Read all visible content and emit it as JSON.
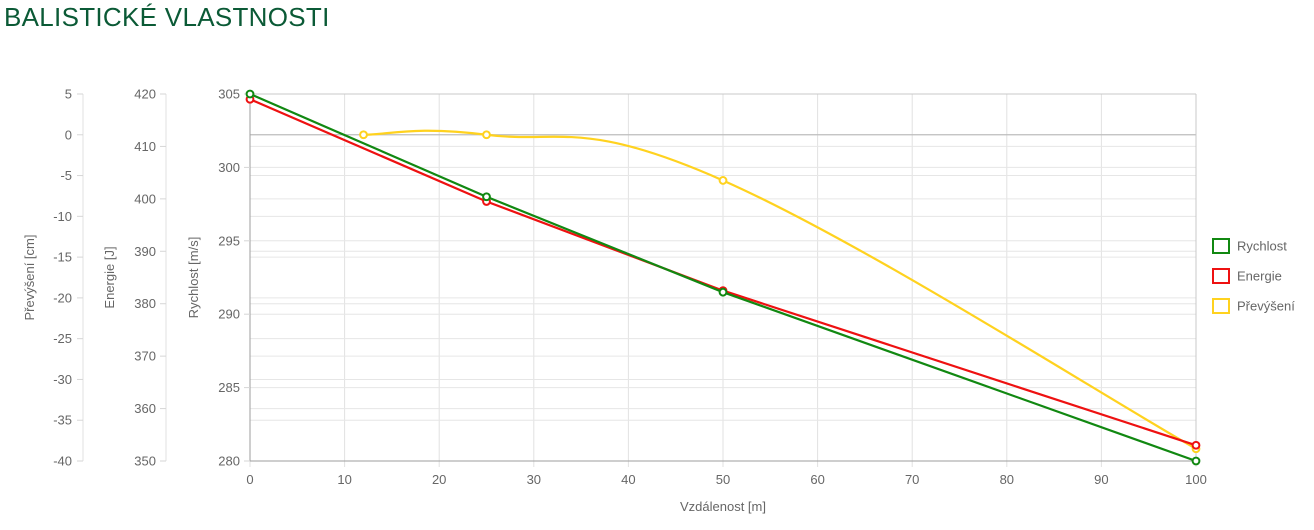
{
  "page": {
    "title": "BALISTICKÉ VLASTNOSTI"
  },
  "chart_data": {
    "type": "line",
    "xlabel": "Vzdálenost [m]",
    "xlim": [
      0,
      100
    ],
    "xticks": [
      0,
      10,
      20,
      30,
      40,
      50,
      60,
      70,
      80,
      90,
      100
    ],
    "grid": true,
    "legend_position": "right",
    "axes": [
      {
        "id": "prevyseni",
        "label": "Převýšení [cm]",
        "lim": [
          -40,
          5
        ],
        "ticks": [
          5,
          0,
          -5,
          -10,
          -15,
          -20,
          -25,
          -30,
          -35,
          -40
        ]
      },
      {
        "id": "energie",
        "label": "Energie [J]",
        "lim": [
          350,
          420
        ],
        "ticks": [
          420,
          410,
          400,
          390,
          380,
          370,
          360,
          350
        ]
      },
      {
        "id": "rychlost",
        "label": "Rychlost [m/s]",
        "lim": [
          280,
          305
        ],
        "ticks": [
          305,
          300,
          295,
          290,
          285,
          280
        ]
      }
    ],
    "series": [
      {
        "name": "Rychlost",
        "axis": "rychlost",
        "color": "#118811",
        "smooth": false,
        "x": [
          0,
          25,
          50,
          100
        ],
        "y": [
          305,
          298,
          291.5,
          280
        ]
      },
      {
        "name": "Energie",
        "axis": "energie",
        "color": "#ee1111",
        "smooth": false,
        "x": [
          0,
          25,
          50,
          100
        ],
        "y": [
          419,
          399.5,
          382.5,
          353
        ]
      },
      {
        "name": "Převýšení",
        "axis": "prevyseni",
        "color": "#ffd21f",
        "smooth": true,
        "x": [
          12,
          25,
          50,
          100
        ],
        "y": [
          0,
          0,
          -5.6,
          -38.5
        ]
      }
    ]
  }
}
